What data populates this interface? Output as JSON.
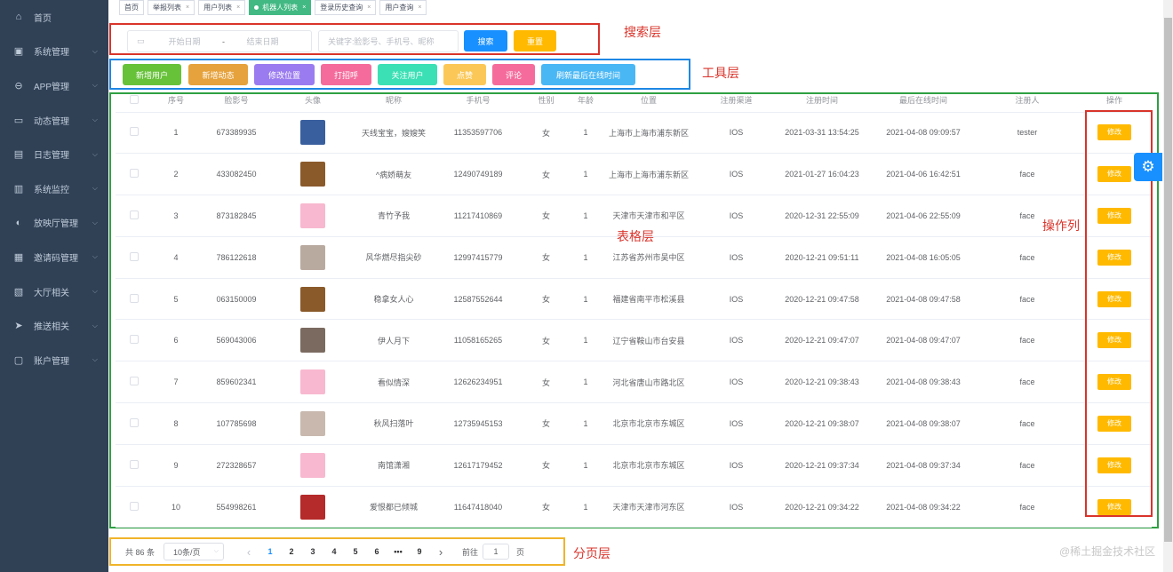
{
  "sidebar": {
    "items": [
      {
        "label": "首页",
        "icon": "home-icon",
        "chev": false
      },
      {
        "label": "系统管理",
        "icon": "monitor-icon",
        "chev": true
      },
      {
        "label": "APP管理",
        "icon": "app-icon",
        "chev": true
      },
      {
        "label": "动态管理",
        "icon": "message-icon",
        "chev": true
      },
      {
        "label": "日志管理",
        "icon": "document-icon",
        "chev": true
      },
      {
        "label": "系统监控",
        "icon": "server-icon",
        "chev": true
      },
      {
        "label": "放映厅管理",
        "icon": "film-icon",
        "chev": true
      },
      {
        "label": "邀请码管理",
        "icon": "ticket-icon",
        "chev": true
      },
      {
        "label": "大厅相关",
        "icon": "hall-icon",
        "chev": true
      },
      {
        "label": "推送相关",
        "icon": "send-icon",
        "chev": true
      },
      {
        "label": "账户管理",
        "icon": "wallet-icon",
        "chev": true
      }
    ]
  },
  "tags": [
    {
      "label": "首页",
      "close": false
    },
    {
      "label": "举报列表",
      "close": true
    },
    {
      "label": "用户列表",
      "close": true
    },
    {
      "label": "机器人列表",
      "close": true,
      "active": true
    },
    {
      "label": "登录历史查询",
      "close": true
    },
    {
      "label": "用户查询",
      "close": true
    }
  ],
  "search": {
    "start_placeholder": "开始日期",
    "separator": "-",
    "end_placeholder": "结束日期",
    "keyword_placeholder": "关键字:脸影号、手机号、昵称",
    "search_label": "搜索",
    "reset_label": "重置"
  },
  "toolbar": [
    {
      "label": "新增用户",
      "color": "#67c23a"
    },
    {
      "label": "新增动态",
      "color": "#e6a23c"
    },
    {
      "label": "修改位置",
      "color": "#9b7bf0"
    },
    {
      "label": "打招呼",
      "color": "#f56c9c"
    },
    {
      "label": "关注用户",
      "color": "#3be0b4"
    },
    {
      "label": "点赞",
      "color": "#fbc858"
    },
    {
      "label": "评论",
      "color": "#f56c9c"
    },
    {
      "label": "刷新最后在线时间",
      "color": "#4ab7f5"
    }
  ],
  "annotations": {
    "search": "搜索层",
    "toolbar": "工具层",
    "table": "表格层",
    "actions": "操作列",
    "pagination": "分页层"
  },
  "table": {
    "columns": [
      "",
      "序号",
      "脸影号",
      "头像",
      "昵称",
      "手机号",
      "性别",
      "年龄",
      "位置",
      "注册渠道",
      "注册时间",
      "最后在线时间",
      "注册人",
      "操作"
    ],
    "edit_label": "修改",
    "rows": [
      [
        "1",
        "673389935",
        "#3a5f9e",
        "天线宝宝，嫂嫂笑",
        "11353597706",
        "女",
        "1",
        "上海市上海市浦东新区",
        "IOS",
        "2021-03-31 13:54:25",
        "2021-04-08 09:09:57",
        "tester"
      ],
      [
        "2",
        "433082450",
        "#8a5a2b",
        "^病娇萌友",
        "12490749189",
        "女",
        "1",
        "上海市上海市浦东新区",
        "IOS",
        "2021-01-27 16:04:23",
        "2021-04-06 16:42:51",
        "face"
      ],
      [
        "3",
        "873182845",
        "#f8b8cf",
        "青竹予我",
        "11217410869",
        "女",
        "1",
        "天津市天津市和平区",
        "IOS",
        "2020-12-31 22:55:09",
        "2021-04-06 22:55:09",
        "face"
      ],
      [
        "4",
        "786122618",
        "#b9aaa0",
        "风华燃尽指尖砂",
        "12997415779",
        "女",
        "1",
        "江苏省苏州市吴中区",
        "IOS",
        "2020-12-21 09:51:11",
        "2021-04-08 16:05:05",
        "face"
      ],
      [
        "5",
        "063150009",
        "#8a5a2b",
        "稳拿女人心",
        "12587552644",
        "女",
        "1",
        "福建省南平市松溪县",
        "IOS",
        "2020-12-21 09:47:58",
        "2021-04-08 09:47:58",
        "face"
      ],
      [
        "6",
        "569043006",
        "#7a6a60",
        "伊人月下",
        "11058165265",
        "女",
        "1",
        "辽宁省鞍山市台安县",
        "IOS",
        "2020-12-21 09:47:07",
        "2021-04-08 09:47:07",
        "face"
      ],
      [
        "7",
        "859602341",
        "#f8b8cf",
        "看似情深",
        "12626234951",
        "女",
        "1",
        "河北省唐山市路北区",
        "IOS",
        "2020-12-21 09:38:43",
        "2021-04-08 09:38:43",
        "face"
      ],
      [
        "8",
        "107785698",
        "#c8b8ae",
        "秋风扫落叶",
        "12735945153",
        "女",
        "1",
        "北京市北京市东城区",
        "IOS",
        "2020-12-21 09:38:07",
        "2021-04-08 09:38:07",
        "face"
      ],
      [
        "9",
        "272328657",
        "#f8b8cf",
        "南馆潇湘",
        "12617179452",
        "女",
        "1",
        "北京市北京市东城区",
        "IOS",
        "2020-12-21 09:37:34",
        "2021-04-08 09:37:34",
        "face"
      ],
      [
        "10",
        "554998261",
        "#b52a2a",
        "爱恨都已倾城",
        "11647418040",
        "女",
        "1",
        "天津市天津市河东区",
        "IOS",
        "2020-12-21 09:34:22",
        "2021-04-08 09:34:22",
        "face"
      ]
    ]
  },
  "pagination": {
    "total": "共 86 条",
    "page_size": "10条/页",
    "pages": [
      "1",
      "2",
      "3",
      "4",
      "5",
      "6",
      "•••",
      "9"
    ],
    "current": "1",
    "goto_label": "前往",
    "goto_value": "1",
    "page_suffix": "页",
    "prev": "‹",
    "next": "›"
  },
  "watermark": "@稀土掘金技术社区"
}
